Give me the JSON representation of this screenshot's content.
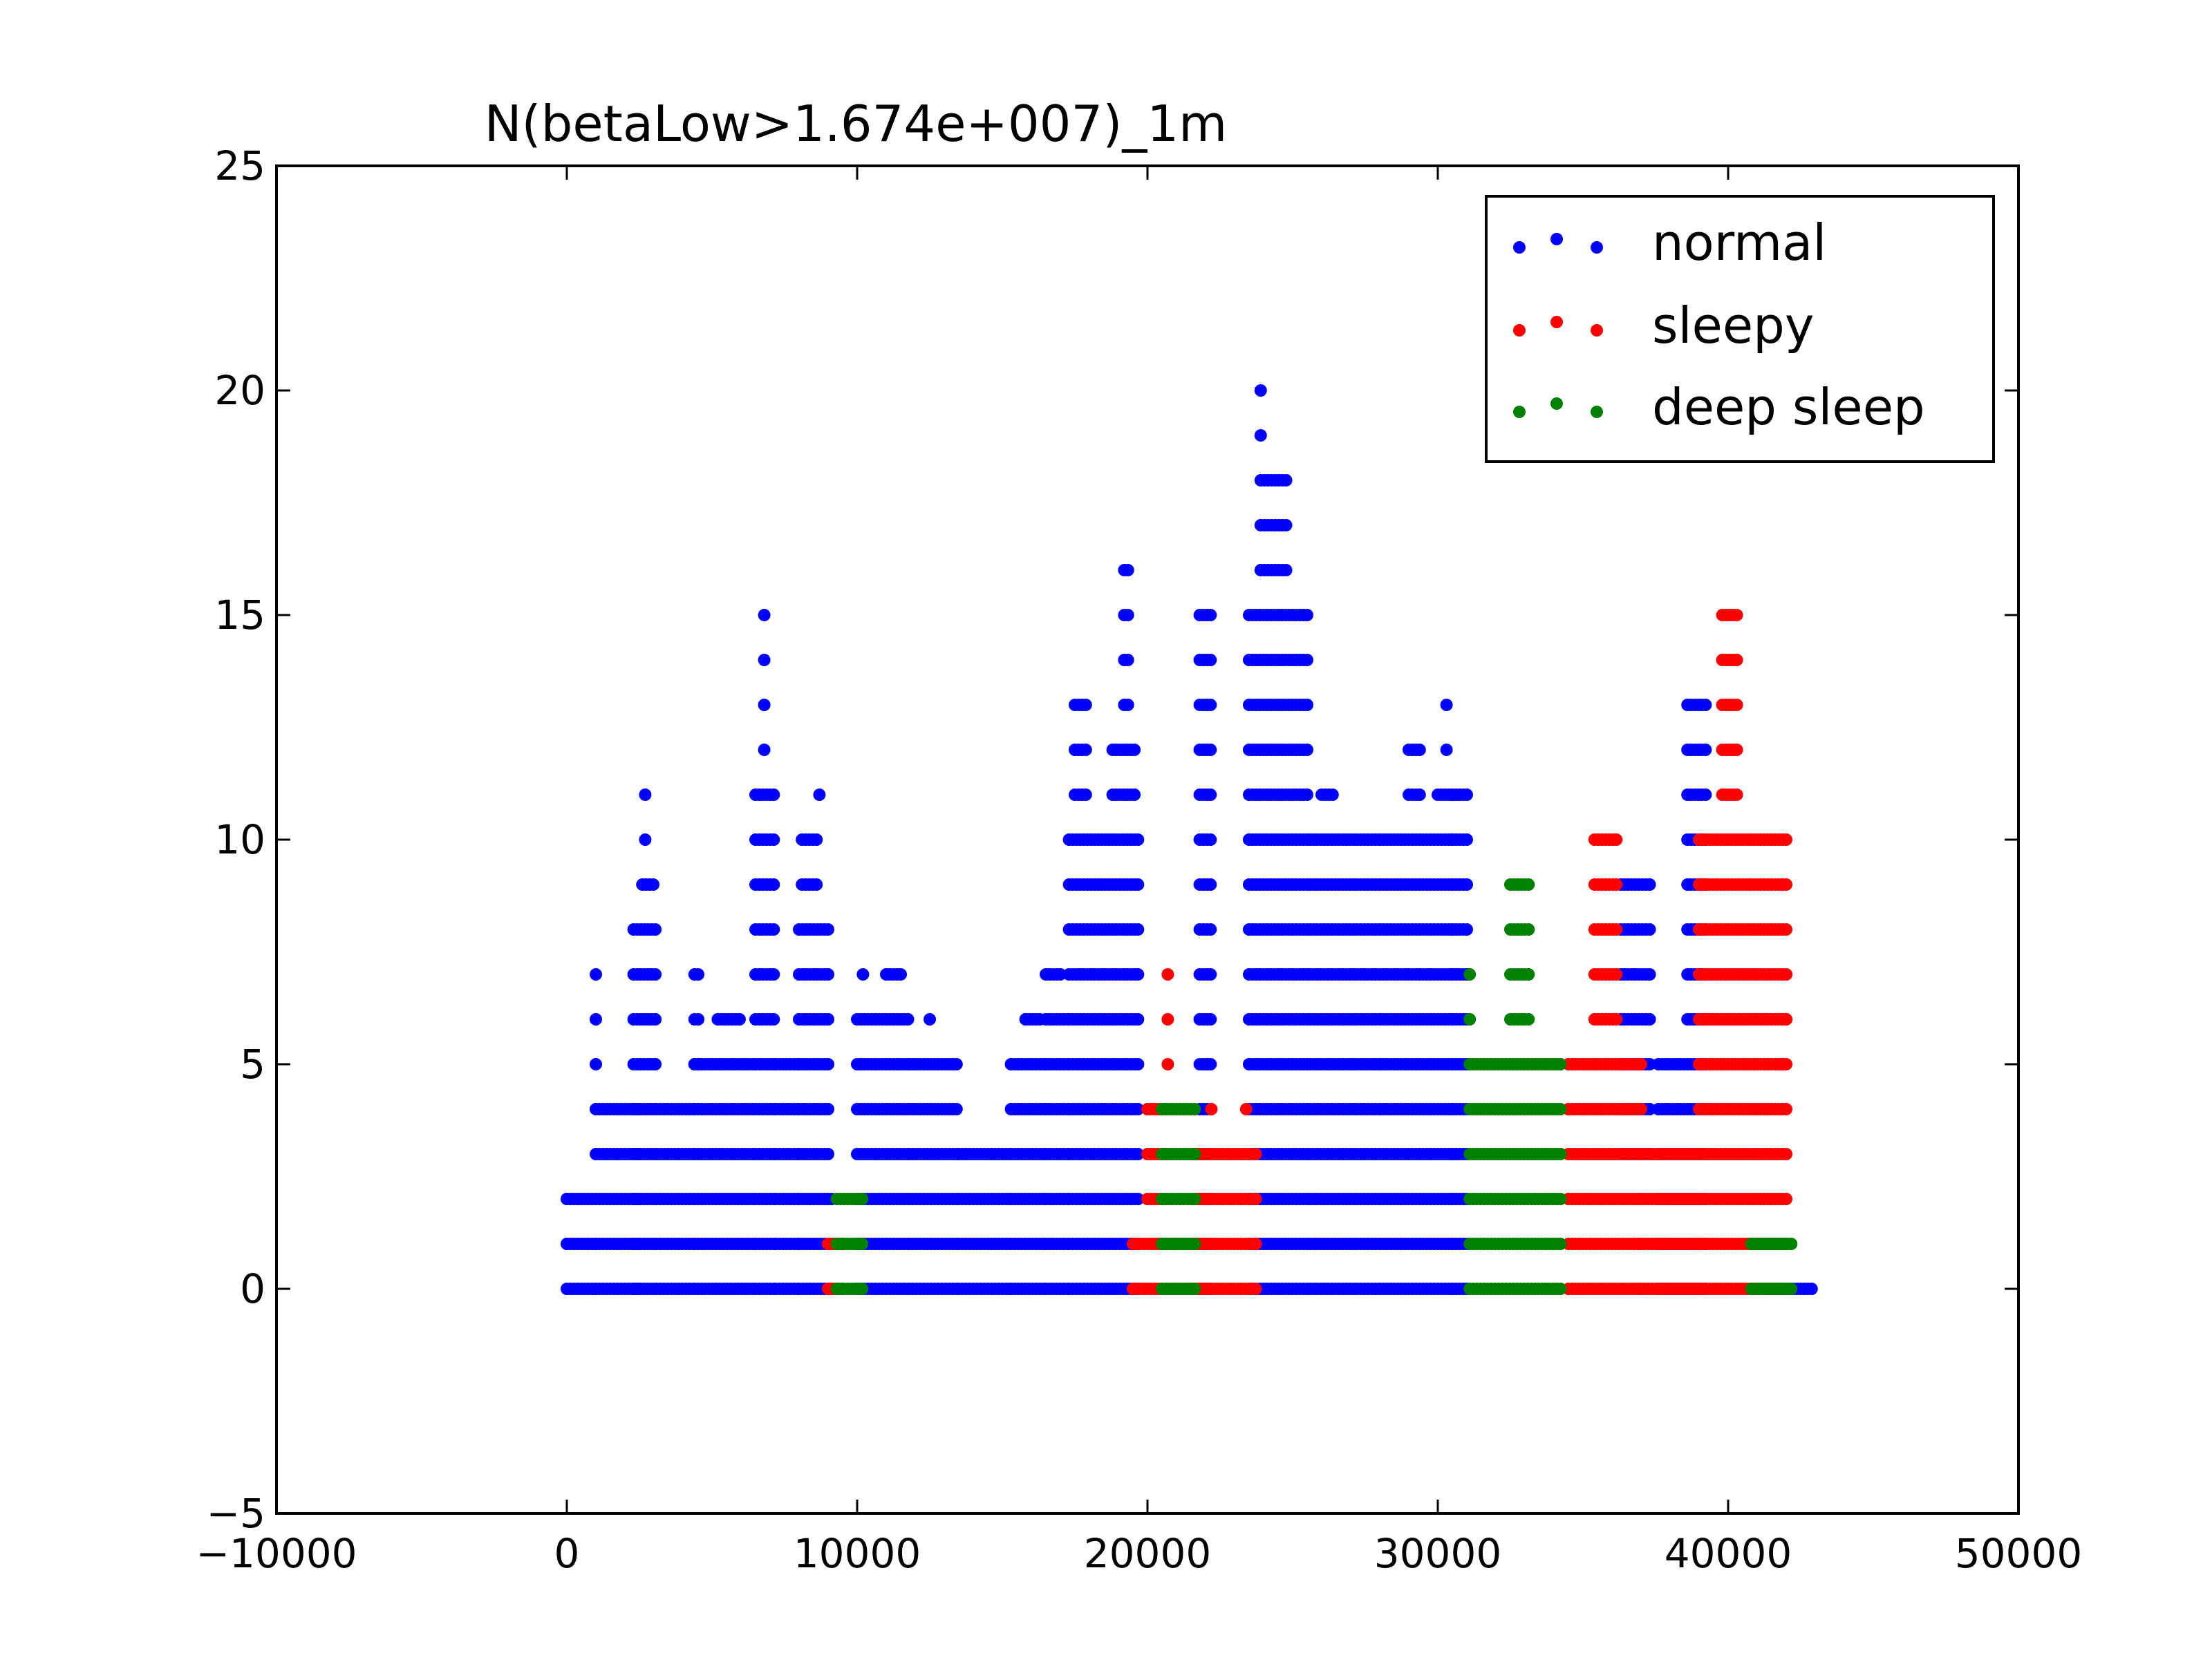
{
  "chart_data": {
    "type": "scatter",
    "title": "N(betaLow>1.674e+007)_1m",
    "xlabel": "",
    "ylabel": "",
    "xlim": [
      -10000,
      50000
    ],
    "ylim": [
      -5,
      25
    ],
    "x_ticks": [
      -10000,
      0,
      10000,
      20000,
      30000,
      40000,
      50000
    ],
    "x_tick_labels": [
      "−10000",
      "0",
      "10000",
      "20000",
      "30000",
      "40000",
      "50000"
    ],
    "y_ticks": [
      -5,
      0,
      5,
      10,
      15,
      20,
      25
    ],
    "y_tick_labels": [
      "−5",
      "0",
      "5",
      "10",
      "15",
      "20",
      "25"
    ],
    "grid": false,
    "legend": {
      "placement": "top-right",
      "entries": [
        "normal",
        "sleepy",
        "deep sleep"
      ]
    },
    "series": [
      {
        "name": "normal",
        "color": "#0000ff",
        "segments": [
          [
            0,
            1000,
            [
              0,
              1
            ]
          ],
          [
            0,
            900,
            [
              2
            ]
          ],
          [
            1000,
            2500,
            [
              0,
              1,
              2,
              3,
              4
            ]
          ],
          [
            1000,
            1000,
            [
              5,
              6,
              7
            ]
          ],
          [
            2300,
            3100,
            [
              0,
              1,
              2,
              3,
              4,
              5,
              6,
              7,
              8
            ]
          ],
          [
            2600,
            3000,
            [
              9
            ]
          ],
          [
            2700,
            2700,
            [
              10,
              11
            ]
          ],
          [
            3100,
            4400,
            [
              0,
              1,
              2,
              3,
              4
            ]
          ],
          [
            4400,
            4600,
            [
              5,
              6,
              7
            ]
          ],
          [
            4400,
            6500,
            [
              0,
              1,
              2,
              3,
              4,
              5
            ]
          ],
          [
            5200,
            6000,
            [
              6
            ]
          ],
          [
            6500,
            7200,
            [
              0,
              1,
              2,
              3,
              4,
              5,
              6,
              7,
              8,
              9,
              10,
              11
            ]
          ],
          [
            6800,
            6800,
            [
              12,
              13,
              14,
              15
            ]
          ],
          [
            7200,
            8000,
            [
              0,
              1,
              2,
              3,
              4,
              5
            ]
          ],
          [
            8000,
            9000,
            [
              0,
              1,
              2,
              3,
              4,
              5,
              6,
              7,
              8
            ]
          ],
          [
            8100,
            8700,
            [
              9,
              10
            ]
          ],
          [
            8700,
            8700,
            [
              11
            ]
          ],
          [
            9000,
            9200,
            [
              0,
              1,
              2
            ]
          ],
          [
            10000,
            11800,
            [
              0,
              1,
              2,
              3,
              4,
              5,
              6
            ]
          ],
          [
            10200,
            10300,
            [
              7
            ]
          ],
          [
            11000,
            11600,
            [
              7
            ]
          ],
          [
            11800,
            13500,
            [
              0,
              1,
              2,
              3,
              4,
              5
            ]
          ],
          [
            12500,
            12500,
            [
              6
            ]
          ],
          [
            13500,
            15300,
            [
              0,
              1,
              2,
              3
            ]
          ],
          [
            15300,
            16500,
            [
              0,
              1,
              2,
              3,
              4,
              5
            ]
          ],
          [
            15800,
            16300,
            [
              6
            ]
          ],
          [
            16500,
            17300,
            [
              0,
              1,
              2,
              3,
              4,
              5,
              6
            ]
          ],
          [
            16500,
            17000,
            [
              7
            ]
          ],
          [
            17300,
            19700,
            [
              0,
              1,
              2,
              3,
              4,
              5,
              6,
              7,
              8,
              9,
              10
            ]
          ],
          [
            17500,
            17900,
            [
              11,
              12,
              13
            ]
          ],
          [
            18800,
            19600,
            [
              11,
              12
            ]
          ],
          [
            19200,
            19400,
            [
              13,
              14,
              15,
              16
            ]
          ],
          [
            21800,
            22200,
            [
              0,
              1,
              2,
              3,
              4,
              5,
              6,
              7,
              8,
              9,
              10,
              11,
              12,
              13,
              14,
              15
            ]
          ],
          [
            23500,
            25600,
            [
              0,
              1,
              2,
              3,
              4,
              5,
              6,
              7,
              8,
              9,
              10,
              11,
              12,
              13,
              14,
              15
            ]
          ],
          [
            23900,
            24800,
            [
              16,
              17,
              18
            ]
          ],
          [
            23900,
            23900,
            [
              19,
              20
            ]
          ],
          [
            25600,
            28000,
            [
              0,
              1,
              2,
              3,
              4,
              5,
              6,
              7,
              8,
              9,
              10
            ]
          ],
          [
            26000,
            26400,
            [
              11
            ]
          ],
          [
            28000,
            30500,
            [
              0,
              1,
              2,
              3,
              4,
              5,
              6,
              7,
              8,
              9,
              10
            ]
          ],
          [
            29000,
            29400,
            [
              11,
              12
            ]
          ],
          [
            30000,
            30600,
            [
              11
            ]
          ],
          [
            30300,
            30300,
            [
              12,
              13
            ]
          ],
          [
            30500,
            31000,
            [
              0,
              1,
              2,
              3,
              4,
              5,
              6,
              7,
              8,
              9,
              10,
              11
            ]
          ],
          [
            36300,
            37400,
            [
              3,
              4,
              5,
              6,
              7,
              8,
              9
            ]
          ],
          [
            37600,
            39300,
            [
              0,
              1,
              2,
              3,
              4,
              5
            ]
          ],
          [
            38600,
            39300,
            [
              6,
              7,
              8,
              9,
              10,
              11,
              12,
              13
            ]
          ],
          [
            41500,
            42900,
            [
              0
            ]
          ]
        ]
      },
      {
        "name": "sleepy",
        "color": "#ff0000",
        "segments": [
          [
            9000,
            9500,
            [
              0,
              1
            ]
          ],
          [
            19500,
            21500,
            [
              0,
              1
            ]
          ],
          [
            20000,
            20700,
            [
              2,
              3,
              4
            ]
          ],
          [
            20700,
            20700,
            [
              5,
              6,
              7
            ]
          ],
          [
            21600,
            23800,
            [
              0,
              1,
              2,
              3
            ]
          ],
          [
            22200,
            22200,
            [
              4
            ]
          ],
          [
            23400,
            23400,
            [
              4
            ]
          ],
          [
            34500,
            37000,
            [
              0,
              1,
              2,
              3,
              4,
              5
            ]
          ],
          [
            35400,
            36200,
            [
              6,
              7,
              8,
              9,
              10
            ]
          ],
          [
            37000,
            39000,
            [
              0,
              1,
              2,
              3
            ]
          ],
          [
            39000,
            42100,
            [
              0,
              1,
              2,
              3,
              4,
              5,
              6,
              7,
              8,
              9,
              10
            ]
          ],
          [
            39800,
            40300,
            [
              11,
              12,
              13,
              14,
              15
            ]
          ],
          [
            42000,
            42000,
            [
              6,
              7
            ]
          ]
        ]
      },
      {
        "name": "deep sleep",
        "color": "#008000",
        "segments": [
          [
            9300,
            10200,
            [
              0,
              1,
              2
            ]
          ],
          [
            20500,
            21700,
            [
              0,
              1,
              2,
              3,
              4
            ]
          ],
          [
            31100,
            34300,
            [
              0,
              1,
              2,
              3,
              4,
              5
            ]
          ],
          [
            31100,
            31100,
            [
              6,
              7
            ]
          ],
          [
            32500,
            33200,
            [
              6,
              7,
              8,
              9
            ]
          ],
          [
            40800,
            42200,
            [
              0,
              1
            ]
          ]
        ]
      }
    ]
  }
}
